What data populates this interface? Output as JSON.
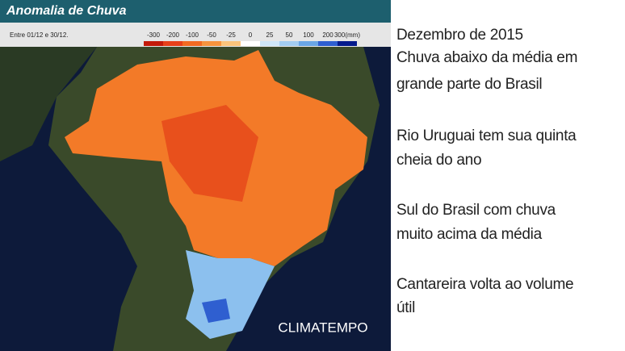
{
  "map": {
    "title": "Anomalia de Chuva",
    "period": "Entre 01/12 e 30/12.",
    "legend": {
      "labels": [
        "-300",
        "-200",
        "-100",
        "-50",
        "-25",
        "0",
        "25",
        "50",
        "100",
        "200",
        "300(mm)"
      ],
      "colors": [
        "#c41a0a",
        "#e8401a",
        "#f36a22",
        "#f7943e",
        "#fbc47c",
        "#ffffff",
        "#cfe6f8",
        "#a3cdf2",
        "#6aa6e6",
        "#2f5fd0",
        "#041a8c"
      ]
    },
    "watermark": "CLIMATEMPO"
  },
  "notes": [
    "Dezembro de 2015",
    "Chuva abaixo da média em",
    "grande parte do Brasil",
    "Rio Uruguai tem sua quinta",
    "cheia do ano",
    "Sul do Brasil com chuva",
    "muito acima da média",
    "Cantareira volta ao volume",
    "útil"
  ]
}
